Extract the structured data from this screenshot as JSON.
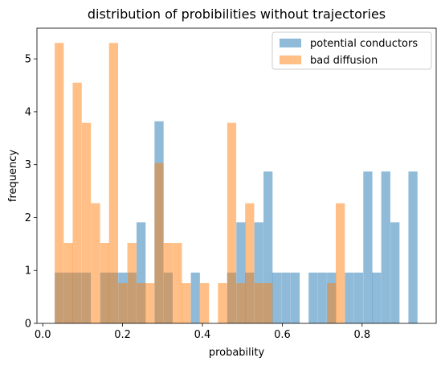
{
  "chart_data": {
    "type": "bar",
    "title": "distribution of probibilities without trajectories",
    "xlabel": "probability",
    "ylabel": "frequency",
    "xlim": [
      -0.0145,
      0.9855
    ],
    "ylim": [
      0,
      5.58
    ],
    "xticks": [
      0.0,
      0.2,
      0.4,
      0.6,
      0.8
    ],
    "xtick_labels": [
      "0.0",
      "0.2",
      "0.4",
      "0.6",
      "0.8"
    ],
    "yticks": [
      0,
      1,
      2,
      3,
      4,
      5
    ],
    "ytick_labels": [
      "0",
      "1",
      "2",
      "3",
      "4",
      "5"
    ],
    "grid": false,
    "legend_position": "top-right",
    "series": [
      {
        "name": "potential conductors",
        "color": "#1f77b4",
        "alpha": 0.5,
        "bin_width": 0.0227,
        "bins": [
          [
            0.03,
            0.96
          ],
          [
            0.053,
            0.96
          ],
          [
            0.075,
            0.96
          ],
          [
            0.098,
            0.96
          ],
          [
            0.144,
            0.96
          ],
          [
            0.166,
            0.96
          ],
          [
            0.189,
            0.96
          ],
          [
            0.212,
            0.96
          ],
          [
            0.235,
            1.91
          ],
          [
            0.28,
            3.82
          ],
          [
            0.303,
            0.96
          ],
          [
            0.371,
            0.96
          ],
          [
            0.462,
            0.96
          ],
          [
            0.485,
            1.91
          ],
          [
            0.507,
            0.96
          ],
          [
            0.53,
            1.91
          ],
          [
            0.553,
            2.87
          ],
          [
            0.575,
            0.96
          ],
          [
            0.598,
            0.96
          ],
          [
            0.621,
            0.96
          ],
          [
            0.666,
            0.96
          ],
          [
            0.689,
            0.96
          ],
          [
            0.712,
            0.96
          ],
          [
            0.757,
            0.96
          ],
          [
            0.78,
            0.96
          ],
          [
            0.803,
            2.87
          ],
          [
            0.825,
            0.96
          ],
          [
            0.848,
            2.87
          ],
          [
            0.871,
            1.91
          ],
          [
            0.916,
            2.87
          ]
        ]
      },
      {
        "name": "bad diffusion",
        "color": "#ff7f0e",
        "alpha": 0.5,
        "bin_width": 0.0227,
        "bins": [
          [
            0.03,
            5.3
          ],
          [
            0.053,
            1.52
          ],
          [
            0.075,
            4.55
          ],
          [
            0.098,
            3.79
          ],
          [
            0.121,
            2.27
          ],
          [
            0.144,
            1.52
          ],
          [
            0.166,
            5.3
          ],
          [
            0.189,
            0.76
          ],
          [
            0.212,
            1.52
          ],
          [
            0.235,
            0.76
          ],
          [
            0.257,
            0.76
          ],
          [
            0.28,
            3.03
          ],
          [
            0.303,
            1.52
          ],
          [
            0.326,
            1.52
          ],
          [
            0.348,
            0.76
          ],
          [
            0.394,
            0.76
          ],
          [
            0.439,
            0.76
          ],
          [
            0.462,
            3.79
          ],
          [
            0.485,
            0.76
          ],
          [
            0.507,
            2.27
          ],
          [
            0.53,
            0.76
          ],
          [
            0.553,
            0.76
          ],
          [
            0.712,
            0.76
          ],
          [
            0.734,
            2.27
          ]
        ]
      }
    ]
  }
}
